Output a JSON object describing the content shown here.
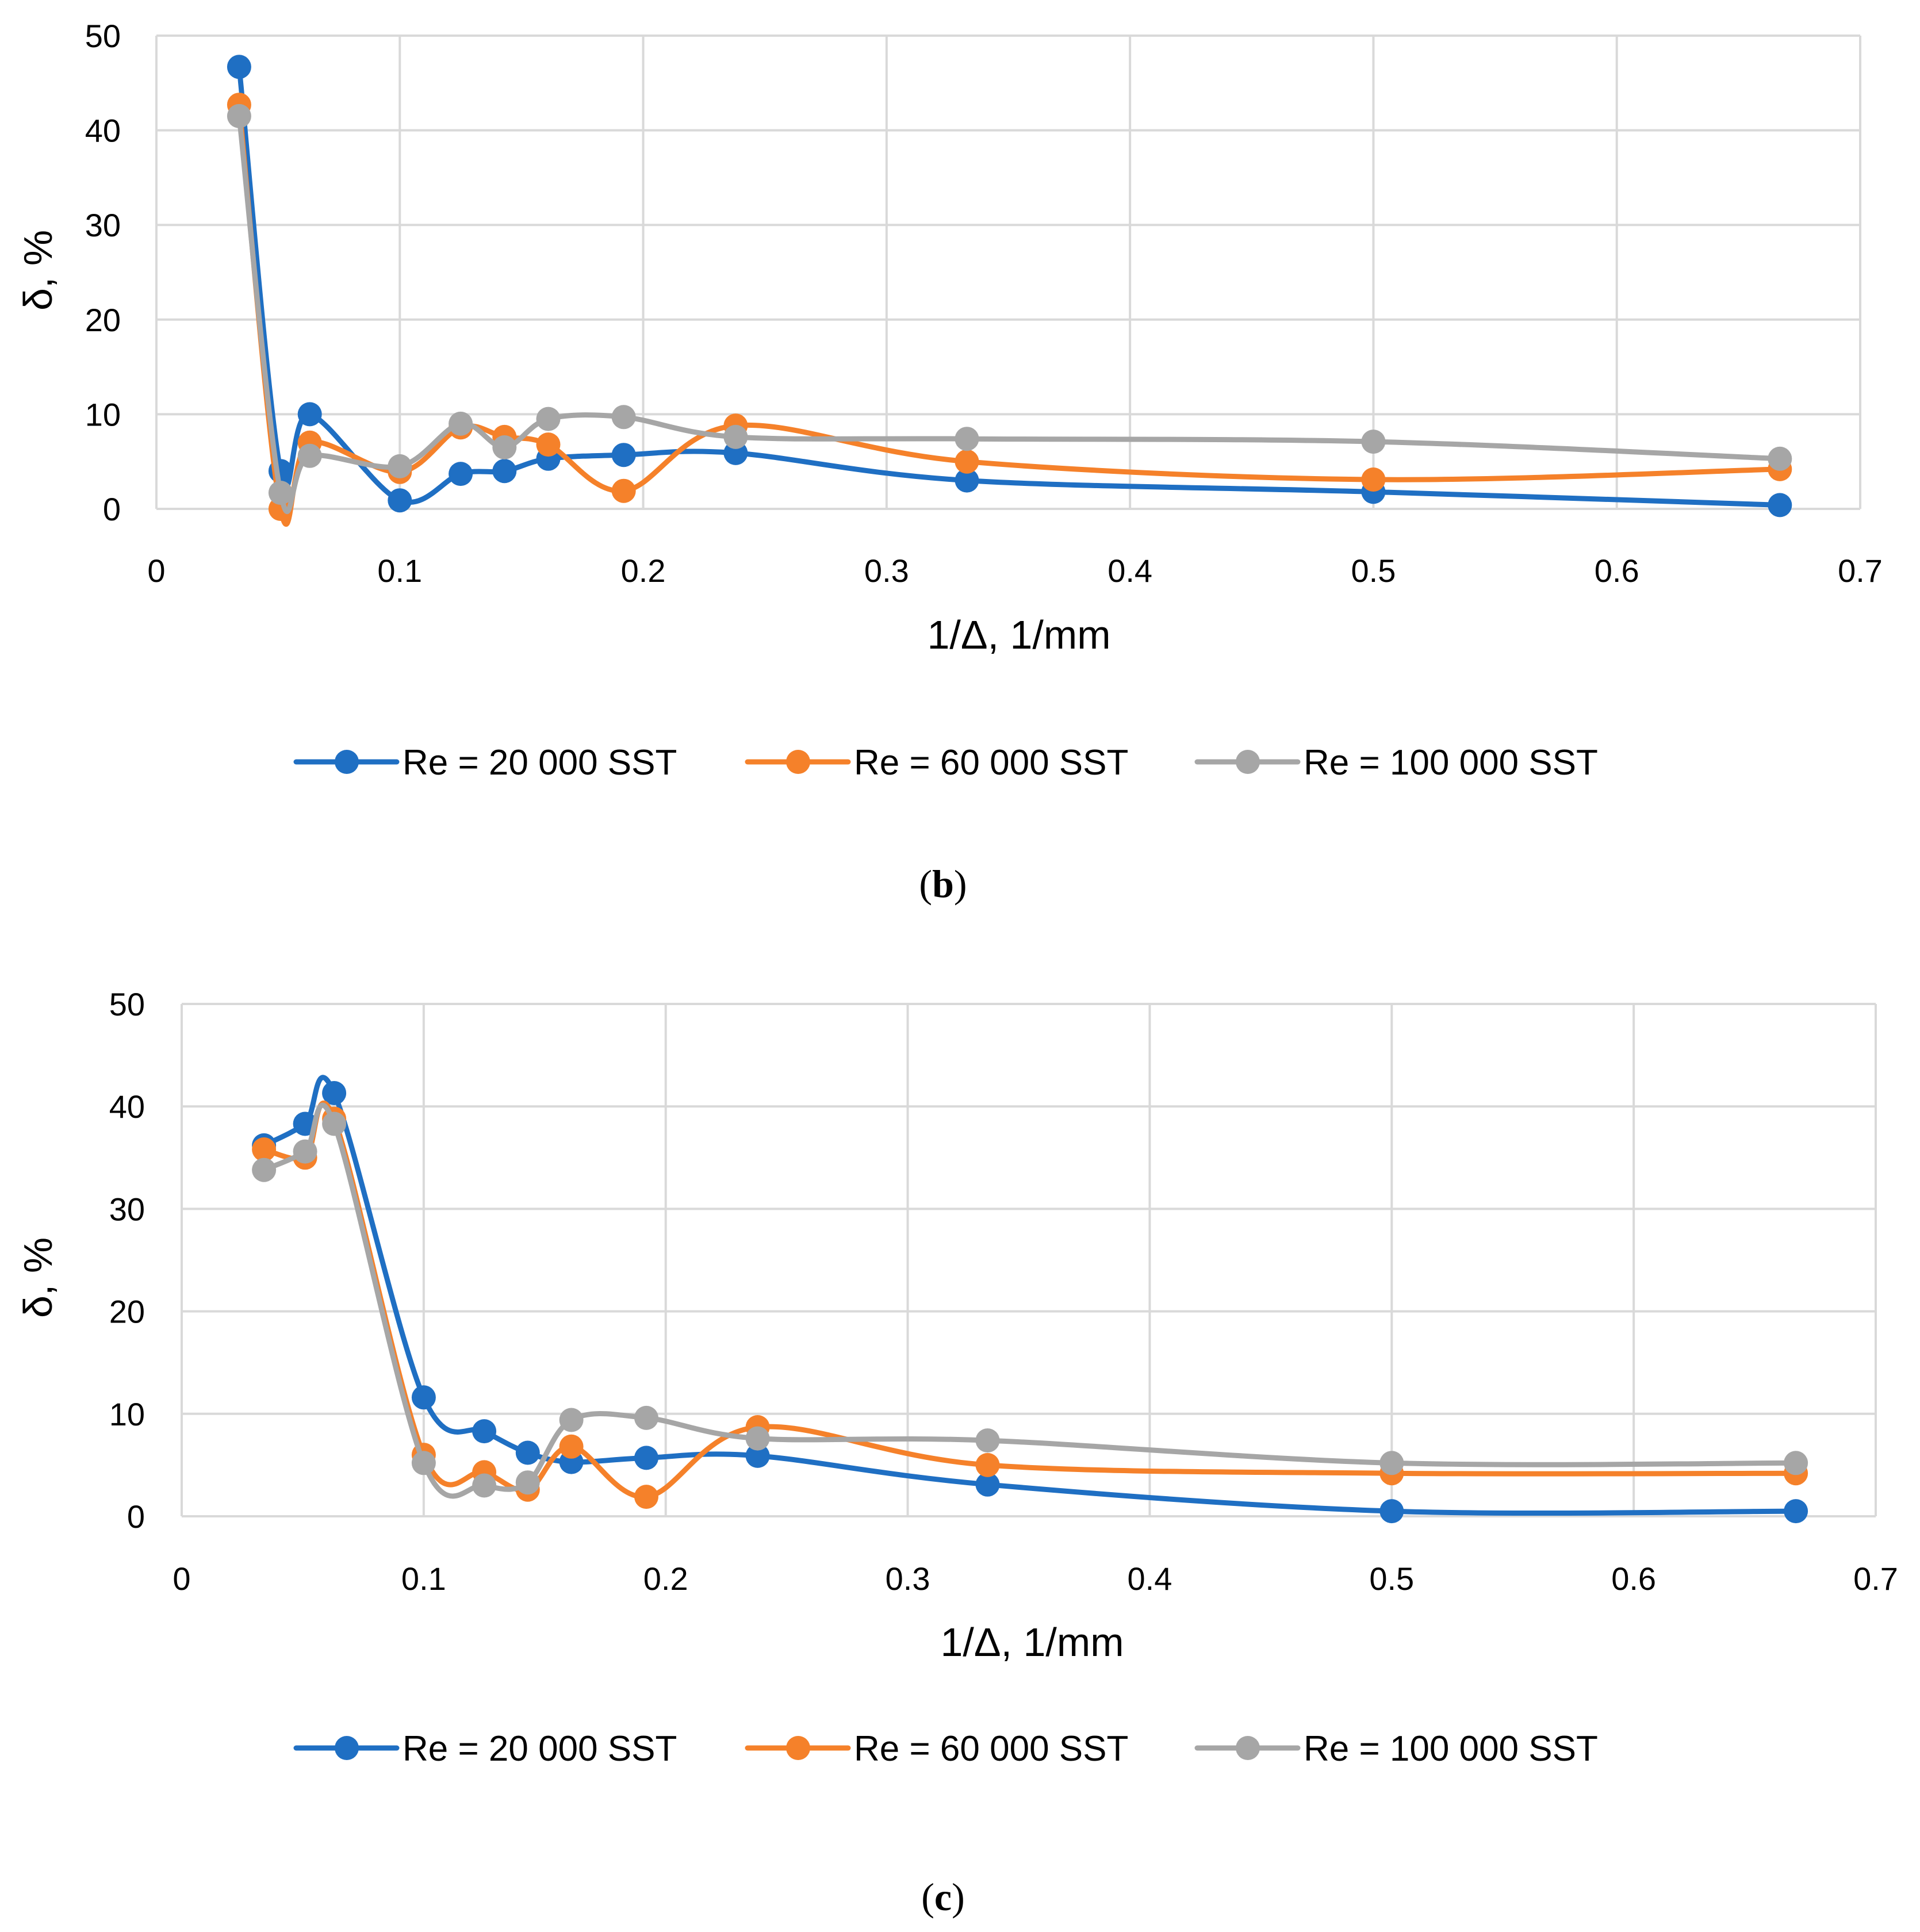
{
  "colors": {
    "s1": "#1f6fc3",
    "s2": "#f5812a",
    "s3": "#a6a6a6"
  },
  "chart_data": [
    {
      "type": "line",
      "caption_letter": "b",
      "xlabel": "1/Δ, 1/mm",
      "ylabel": "δ, %",
      "xlim": [
        0,
        0.7
      ],
      "ylim": [
        0,
        50
      ],
      "xticks": [
        "0",
        "0.1",
        "0.2",
        "0.3",
        "0.4",
        "0.5",
        "0.6",
        "0.7"
      ],
      "yticks": [
        "0",
        "10",
        "20",
        "30",
        "40",
        "50"
      ],
      "grid": true,
      "legend_position": "bottom",
      "series": [
        {
          "name": "Re = 20 000 SST",
          "color": "s1",
          "x": [
            0.034,
            0.051,
            0.063,
            0.1,
            0.125,
            0.143,
            0.161,
            0.192,
            0.238,
            0.333,
            0.5,
            0.667
          ],
          "y": [
            46.7,
            4.0,
            10.0,
            0.9,
            3.7,
            4.0,
            5.3,
            5.7,
            5.9,
            3.0,
            1.8,
            0.4
          ]
        },
        {
          "name": "Re = 60 000 SST",
          "color": "s2",
          "x": [
            0.034,
            0.051,
            0.063,
            0.1,
            0.125,
            0.143,
            0.161,
            0.192,
            0.238,
            0.333,
            0.5,
            0.667
          ],
          "y": [
            42.7,
            0.0,
            7.0,
            3.9,
            8.6,
            7.6,
            6.8,
            1.9,
            8.8,
            5.0,
            3.1,
            4.2
          ]
        },
        {
          "name": "Re = 100 000 SST",
          "color": "s3",
          "x": [
            0.034,
            0.051,
            0.063,
            0.1,
            0.125,
            0.143,
            0.161,
            0.192,
            0.238,
            0.333,
            0.5,
            0.667
          ],
          "y": [
            41.5,
            1.7,
            5.6,
            4.5,
            9.0,
            6.5,
            9.5,
            9.7,
            7.6,
            7.4,
            7.1,
            5.3
          ]
        }
      ]
    },
    {
      "type": "line",
      "caption_letter": "c",
      "xlabel": "1/Δ, 1/mm",
      "ylabel": "δ, %",
      "xlim": [
        0,
        0.7
      ],
      "ylim": [
        0,
        50
      ],
      "xticks": [
        "0",
        "0.1",
        "0.2",
        "0.3",
        "0.4",
        "0.5",
        "0.6",
        "0.7"
      ],
      "yticks": [
        "0",
        "10",
        "20",
        "30",
        "40",
        "50"
      ],
      "grid": true,
      "legend_position": "bottom",
      "series": [
        {
          "name": "Re = 20 000 SST",
          "color": "s1",
          "x": [
            0.034,
            0.051,
            0.063,
            0.1,
            0.125,
            0.143,
            0.161,
            0.192,
            0.238,
            0.333,
            0.5,
            0.667
          ],
          "y": [
            36.2,
            38.3,
            41.3,
            11.6,
            8.3,
            6.2,
            5.3,
            5.7,
            5.9,
            3.1,
            0.5,
            0.5
          ]
        },
        {
          "name": "Re = 60 000 SST",
          "color": "s2",
          "x": [
            0.034,
            0.051,
            0.063,
            0.1,
            0.125,
            0.143,
            0.161,
            0.192,
            0.238,
            0.333,
            0.5,
            0.667
          ],
          "y": [
            35.8,
            35.0,
            38.8,
            6.0,
            4.3,
            2.6,
            6.8,
            1.9,
            8.7,
            5.0,
            4.2,
            4.2
          ]
        },
        {
          "name": "Re = 100 000 SST",
          "color": "s3",
          "x": [
            0.034,
            0.051,
            0.063,
            0.1,
            0.125,
            0.143,
            0.161,
            0.192,
            0.238,
            0.333,
            0.5,
            0.667
          ],
          "y": [
            33.8,
            35.6,
            38.3,
            5.2,
            3.0,
            3.3,
            9.4,
            9.6,
            7.6,
            7.4,
            5.2,
            5.2
          ]
        }
      ]
    }
  ]
}
